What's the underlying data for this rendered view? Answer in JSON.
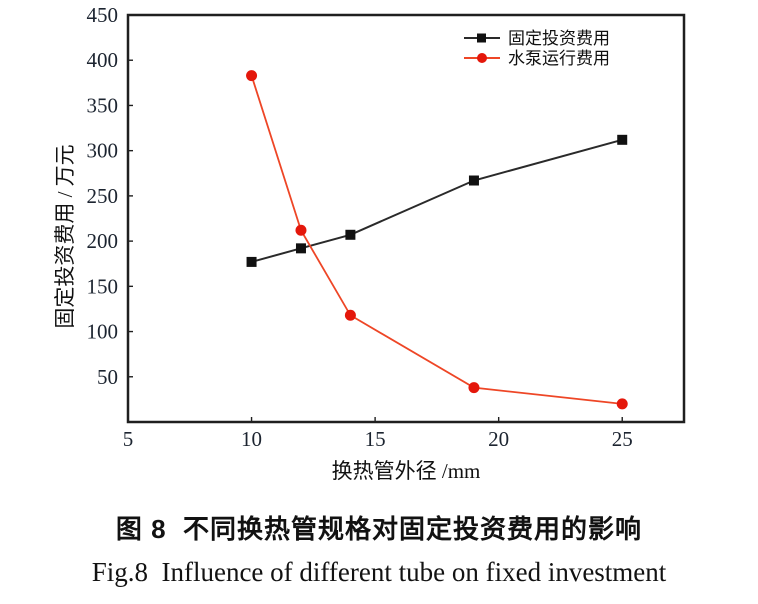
{
  "figure": {
    "caption_zh": "图 8  不同换热管规格对固定投资费用的影响",
    "caption_en": "Fig.8  Influence of different tube on fixed investment"
  },
  "chart_data": {
    "type": "line",
    "x": [
      10,
      12,
      14,
      19,
      25
    ],
    "series": [
      {
        "name": "固定投资费用",
        "values": [
          177,
          192,
          207,
          267,
          312
        ],
        "marker": "square",
        "marker_color": "#111111",
        "line_color": "#2a2a2a"
      },
      {
        "name": "水泵运行费用",
        "values": [
          383,
          212,
          118,
          38,
          20
        ],
        "marker": "circle",
        "marker_color": "#e4170b",
        "line_color": "#ee4626"
      }
    ],
    "title": "",
    "xlabel": "换热管外径 /mm",
    "ylabel": "固定投资费用 / 万元",
    "xlim": [
      5,
      27.5
    ],
    "ylim": [
      0,
      450
    ],
    "xticks": [
      5,
      10,
      15,
      20,
      25
    ],
    "yticks": [
      50,
      100,
      150,
      200,
      250,
      300,
      350,
      400,
      450
    ],
    "grid": false,
    "legend_position": "top-right",
    "axis_color": "#1f1f1f",
    "tick_label_color": "#1c2430"
  }
}
